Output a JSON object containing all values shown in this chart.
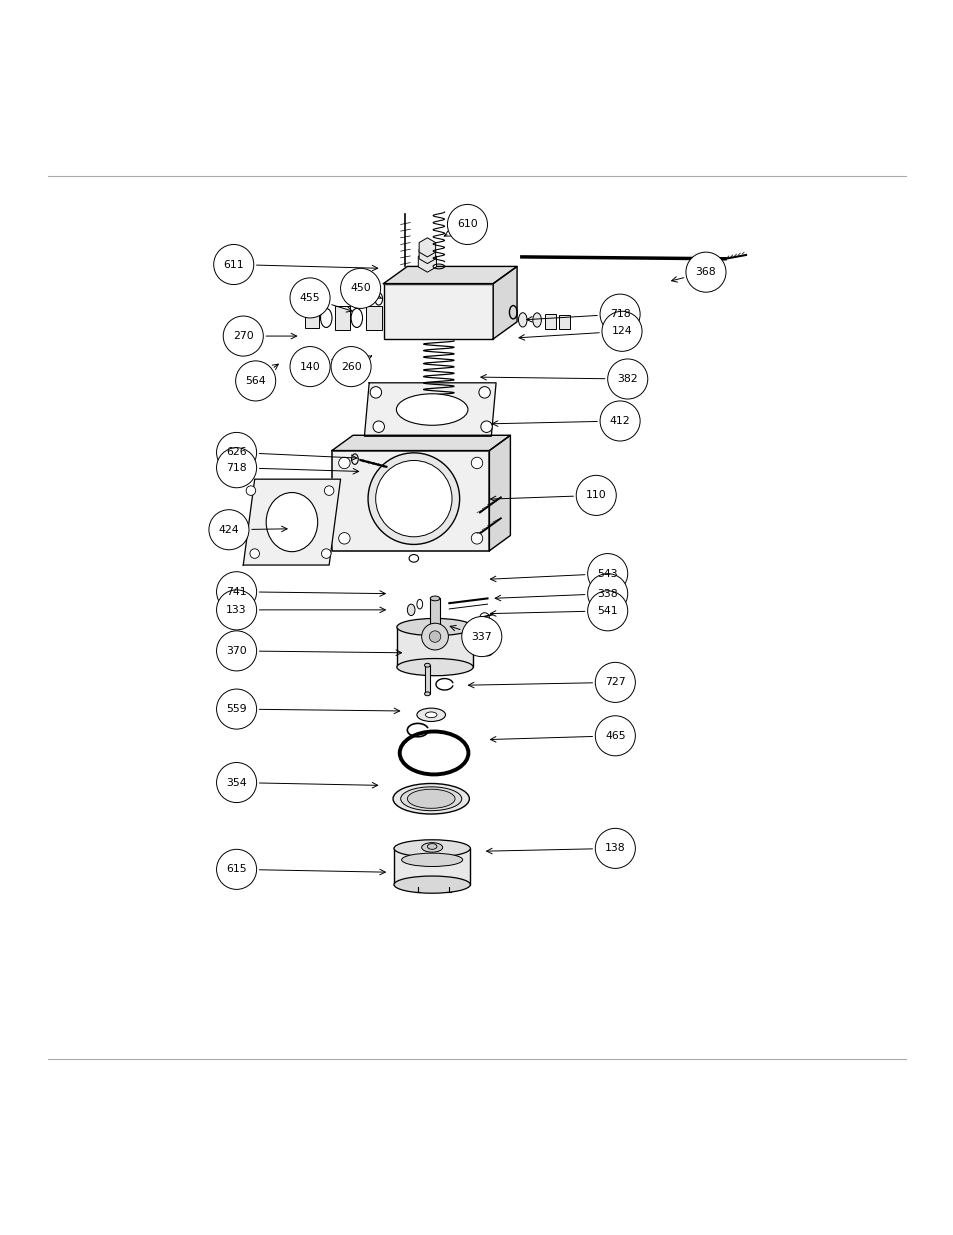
{
  "background_color": "#ffffff",
  "line_color": "#000000",
  "fill_color": "#ffffff",
  "fig_width": 9.54,
  "fig_height": 12.35,
  "dpi": 100,
  "label_map": {
    "611": [
      0.245,
      0.87,
      0.4,
      0.866
    ],
    "610": [
      0.49,
      0.912,
      0.462,
      0.898
    ],
    "368": [
      0.74,
      0.862,
      0.7,
      0.852
    ],
    "455": [
      0.325,
      0.835,
      0.373,
      0.82
    ],
    "450": [
      0.378,
      0.845,
      0.403,
      0.833
    ],
    "718a": [
      0.65,
      0.818,
      0.548,
      0.812
    ],
    "124": [
      0.652,
      0.8,
      0.54,
      0.793
    ],
    "270": [
      0.255,
      0.795,
      0.315,
      0.795
    ],
    "140": [
      0.325,
      0.763,
      0.365,
      0.776
    ],
    "260": [
      0.368,
      0.763,
      0.393,
      0.776
    ],
    "564": [
      0.268,
      0.748,
      0.295,
      0.768
    ],
    "382": [
      0.658,
      0.75,
      0.5,
      0.752
    ],
    "412": [
      0.65,
      0.706,
      0.512,
      0.703
    ],
    "626": [
      0.248,
      0.673,
      0.378,
      0.667
    ],
    "718b": [
      0.248,
      0.657,
      0.38,
      0.653
    ],
    "110": [
      0.625,
      0.628,
      0.51,
      0.624
    ],
    "424": [
      0.24,
      0.592,
      0.305,
      0.593
    ],
    "543": [
      0.637,
      0.546,
      0.51,
      0.54
    ],
    "741": [
      0.248,
      0.527,
      0.408,
      0.525
    ],
    "338": [
      0.637,
      0.525,
      0.515,
      0.52
    ],
    "133": [
      0.248,
      0.508,
      0.408,
      0.508
    ],
    "541": [
      0.637,
      0.507,
      0.51,
      0.504
    ],
    "337": [
      0.505,
      0.48,
      0.468,
      0.492
    ],
    "370": [
      0.248,
      0.465,
      0.425,
      0.463
    ],
    "727": [
      0.645,
      0.432,
      0.487,
      0.429
    ],
    "559": [
      0.248,
      0.404,
      0.423,
      0.402
    ],
    "465": [
      0.645,
      0.376,
      0.51,
      0.372
    ],
    "354": [
      0.248,
      0.327,
      0.4,
      0.324
    ],
    "138": [
      0.645,
      0.258,
      0.506,
      0.255
    ],
    "615": [
      0.248,
      0.236,
      0.408,
      0.233
    ]
  },
  "display_nums": {
    "718a": "718",
    "718b": "718"
  }
}
